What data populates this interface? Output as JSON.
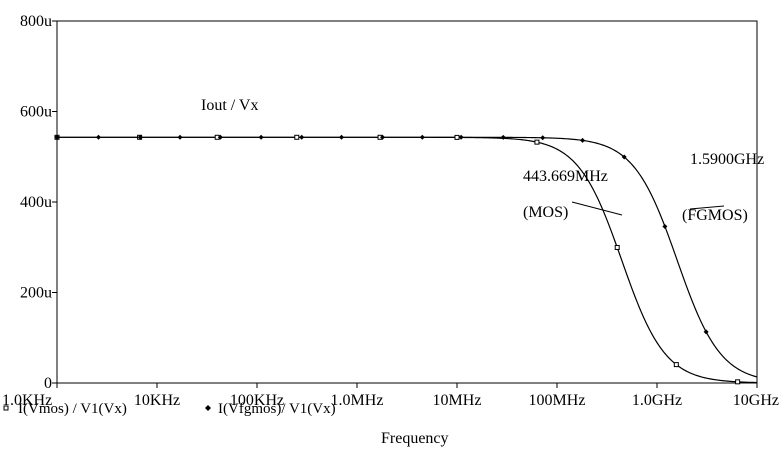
{
  "chart_data": {
    "type": "line",
    "title": "",
    "xlabel": "Frequency",
    "ylabel": "",
    "x_scale": "log",
    "xlim": [
      1000,
      10000000000
    ],
    "ylim": [
      0,
      0.0008
    ],
    "grid": false,
    "x_ticks": [
      {
        "value": 1000,
        "label": "1.0KHz"
      },
      {
        "value": 10000,
        "label": "10KHz"
      },
      {
        "value": 100000,
        "label": "100KHz"
      },
      {
        "value": 1000000,
        "label": "1.0MHz"
      },
      {
        "value": 10000000,
        "label": "10MHz"
      },
      {
        "value": 100000000,
        "label": "100MHz"
      },
      {
        "value": 1000000000,
        "label": "1.0GHz"
      },
      {
        "value": 10000000000,
        "label": "10GHz"
      }
    ],
    "y_ticks": [
      {
        "value": 0,
        "label": "0"
      },
      {
        "value": 0.0002,
        "label": "200u"
      },
      {
        "value": 0.0004,
        "label": "400u"
      },
      {
        "value": 0.0006,
        "label": "600u"
      },
      {
        "value": 0.0008,
        "label": "800u"
      }
    ],
    "series": [
      {
        "name": "I(Vmos) / V1(Vx)",
        "marker": "square",
        "dc_gain": 0.000543,
        "cutoff_hz": 443669000,
        "marker_x": [
          1000,
          6700,
          40000,
          250000,
          1700000,
          10000000,
          63000000,
          400000000,
          1560000000,
          6400000000
        ]
      },
      {
        "name": "I(Vfgmos)/ V1(Vx)",
        "marker": "diamond",
        "dc_gain": 0.000543,
        "cutoff_hz": 1590000000,
        "marker_x": [
          1000,
          2600,
          6800,
          17000,
          43000,
          110000,
          280000,
          700000,
          1800000,
          4500000,
          11000000,
          29000000,
          72000000,
          180000000,
          470000000,
          1200000000,
          3100000000
        ]
      }
    ],
    "annotations": [
      {
        "id": "iout",
        "text": "Iout / Vx"
      },
      {
        "id": "fg-freq",
        "text": "1.5900GHz"
      },
      {
        "id": "fg-label",
        "text": "(FGMOS)"
      },
      {
        "id": "mos-freq",
        "text": "443.669MHz"
      },
      {
        "id": "mos-label",
        "text": "(MOS)"
      }
    ]
  }
}
